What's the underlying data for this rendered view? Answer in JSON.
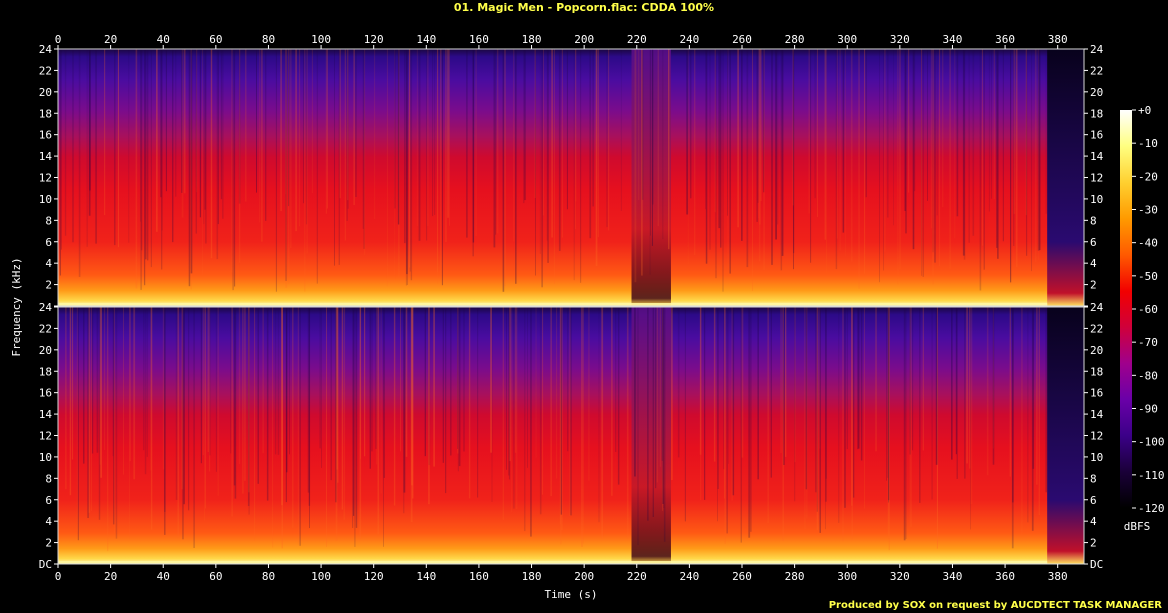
{
  "header": {
    "title": "01. Magic Men - Popcorn.flac: CDDA 100%",
    "credit": "Produced by SOX on request by AUCDTECT TASK MANAGER"
  },
  "chart_data": {
    "type": "heatmap",
    "xlabel": "Time (s)",
    "ylabel": "Frequency (kHz)",
    "xlim": [
      0,
      390
    ],
    "x_ticks": [
      "0",
      "20",
      "40",
      "60",
      "80",
      "100",
      "120",
      "140",
      "160",
      "180",
      "200",
      "220",
      "240",
      "260",
      "280",
      "300",
      "320",
      "340",
      "360",
      "380"
    ],
    "ylim_khz": [
      0,
      24
    ],
    "y_ticks": [
      "DC",
      "2",
      "4",
      "6",
      "8",
      "10",
      "12",
      "14",
      "16",
      "18",
      "20",
      "22",
      "24"
    ],
    "channels": 2,
    "signal_end_s": 376,
    "near_silence_s": [
      218,
      233
    ],
    "grid": false,
    "colorbar": {
      "label": "dBFS",
      "range": [
        -120,
        0
      ],
      "ticks": [
        "+0",
        "-10",
        "-20",
        "-30",
        "-40",
        "-50",
        "-60",
        "-70",
        "-80",
        "-90",
        "-100",
        "-110",
        "-120"
      ],
      "colors": [
        "#000000",
        "#1a0038",
        "#3b0088",
        "#6a00a8",
        "#a0008c",
        "#d0003a",
        "#f20000",
        "#ff5a00",
        "#ff9a00",
        "#ffd030",
        "#ffff80",
        "#ffffff"
      ]
    }
  }
}
